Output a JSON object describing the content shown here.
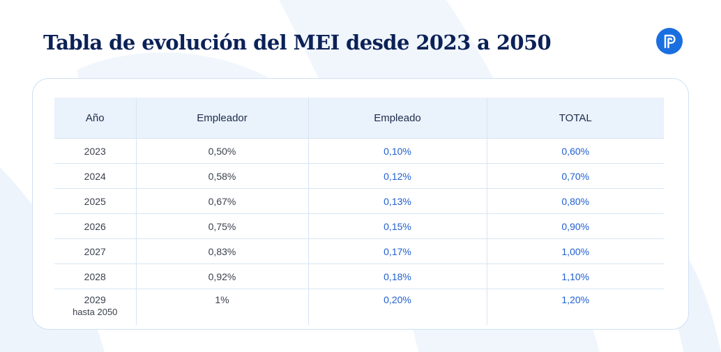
{
  "title": "Tabla de evolución del MEI desde 2023 a 2050",
  "logo": {
    "icon": "p-logo-icon",
    "color": "#1a6fe0"
  },
  "colors": {
    "title": "#0b2157",
    "header_bg": "#eaf2fc",
    "accent_blue": "#1f5fcf"
  },
  "table": {
    "headers": [
      "Año",
      "Empleador",
      "Empleado",
      "TOTAL"
    ],
    "rows": [
      {
        "year": "2023",
        "employer": "0,50%",
        "employee": "0,10%",
        "total": "0,60%"
      },
      {
        "year": "2024",
        "employer": "0,58%",
        "employee": "0,12%",
        "total": "0,70%"
      },
      {
        "year": "2025",
        "employer": "0,67%",
        "employee": "0,13%",
        "total": "0,80%"
      },
      {
        "year": "2026",
        "employer": "0,75%",
        "employee": "0,15%",
        "total": "0,90%"
      },
      {
        "year": "2027",
        "employer": "0,83%",
        "employee": "0,17%",
        "total": "1,00%"
      },
      {
        "year": "2028",
        "employer": "0,92%",
        "employee": "0,18%",
        "total": "1,10%"
      },
      {
        "year": "2029",
        "year_sub": "hasta 2050",
        "employer": "1%",
        "employee": "0,20%",
        "total": "1,20%"
      }
    ]
  }
}
